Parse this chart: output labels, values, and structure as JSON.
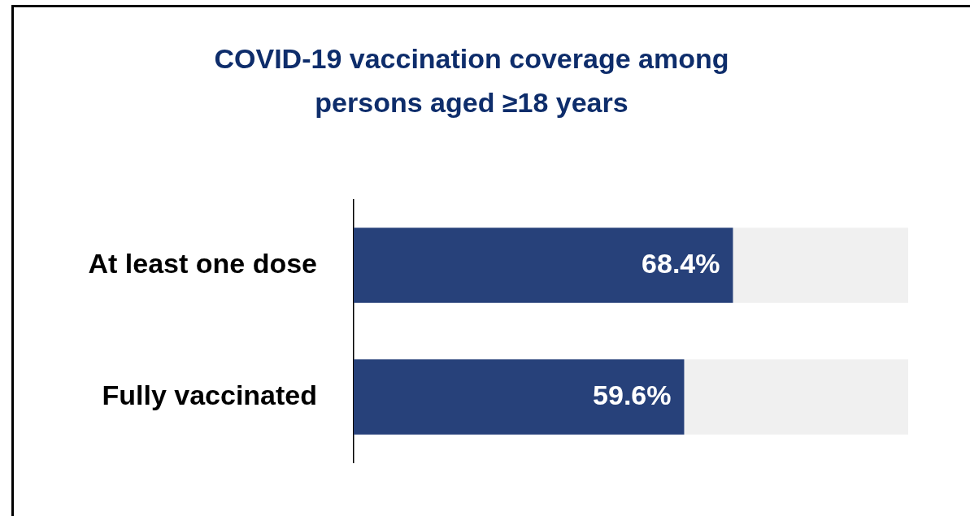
{
  "chart_data": {
    "type": "bar",
    "orientation": "horizontal",
    "stacked": true,
    "title": "COVID-19 vaccination coverage among persons aged ≥18 years",
    "categories": [
      "At least one dose",
      "Fully vaccinated"
    ],
    "series": [
      {
        "color": "#27417a",
        "values": [
          68.4,
          59.6
        ],
        "value_labels": [
          "68.4%",
          "59.6%"
        ]
      },
      {
        "color": "#f0f0f0",
        "values": [
          31.6,
          40.4
        ]
      }
    ],
    "xlim": [
      0,
      100
    ],
    "tick_labels": "y",
    "legend": false
  }
}
